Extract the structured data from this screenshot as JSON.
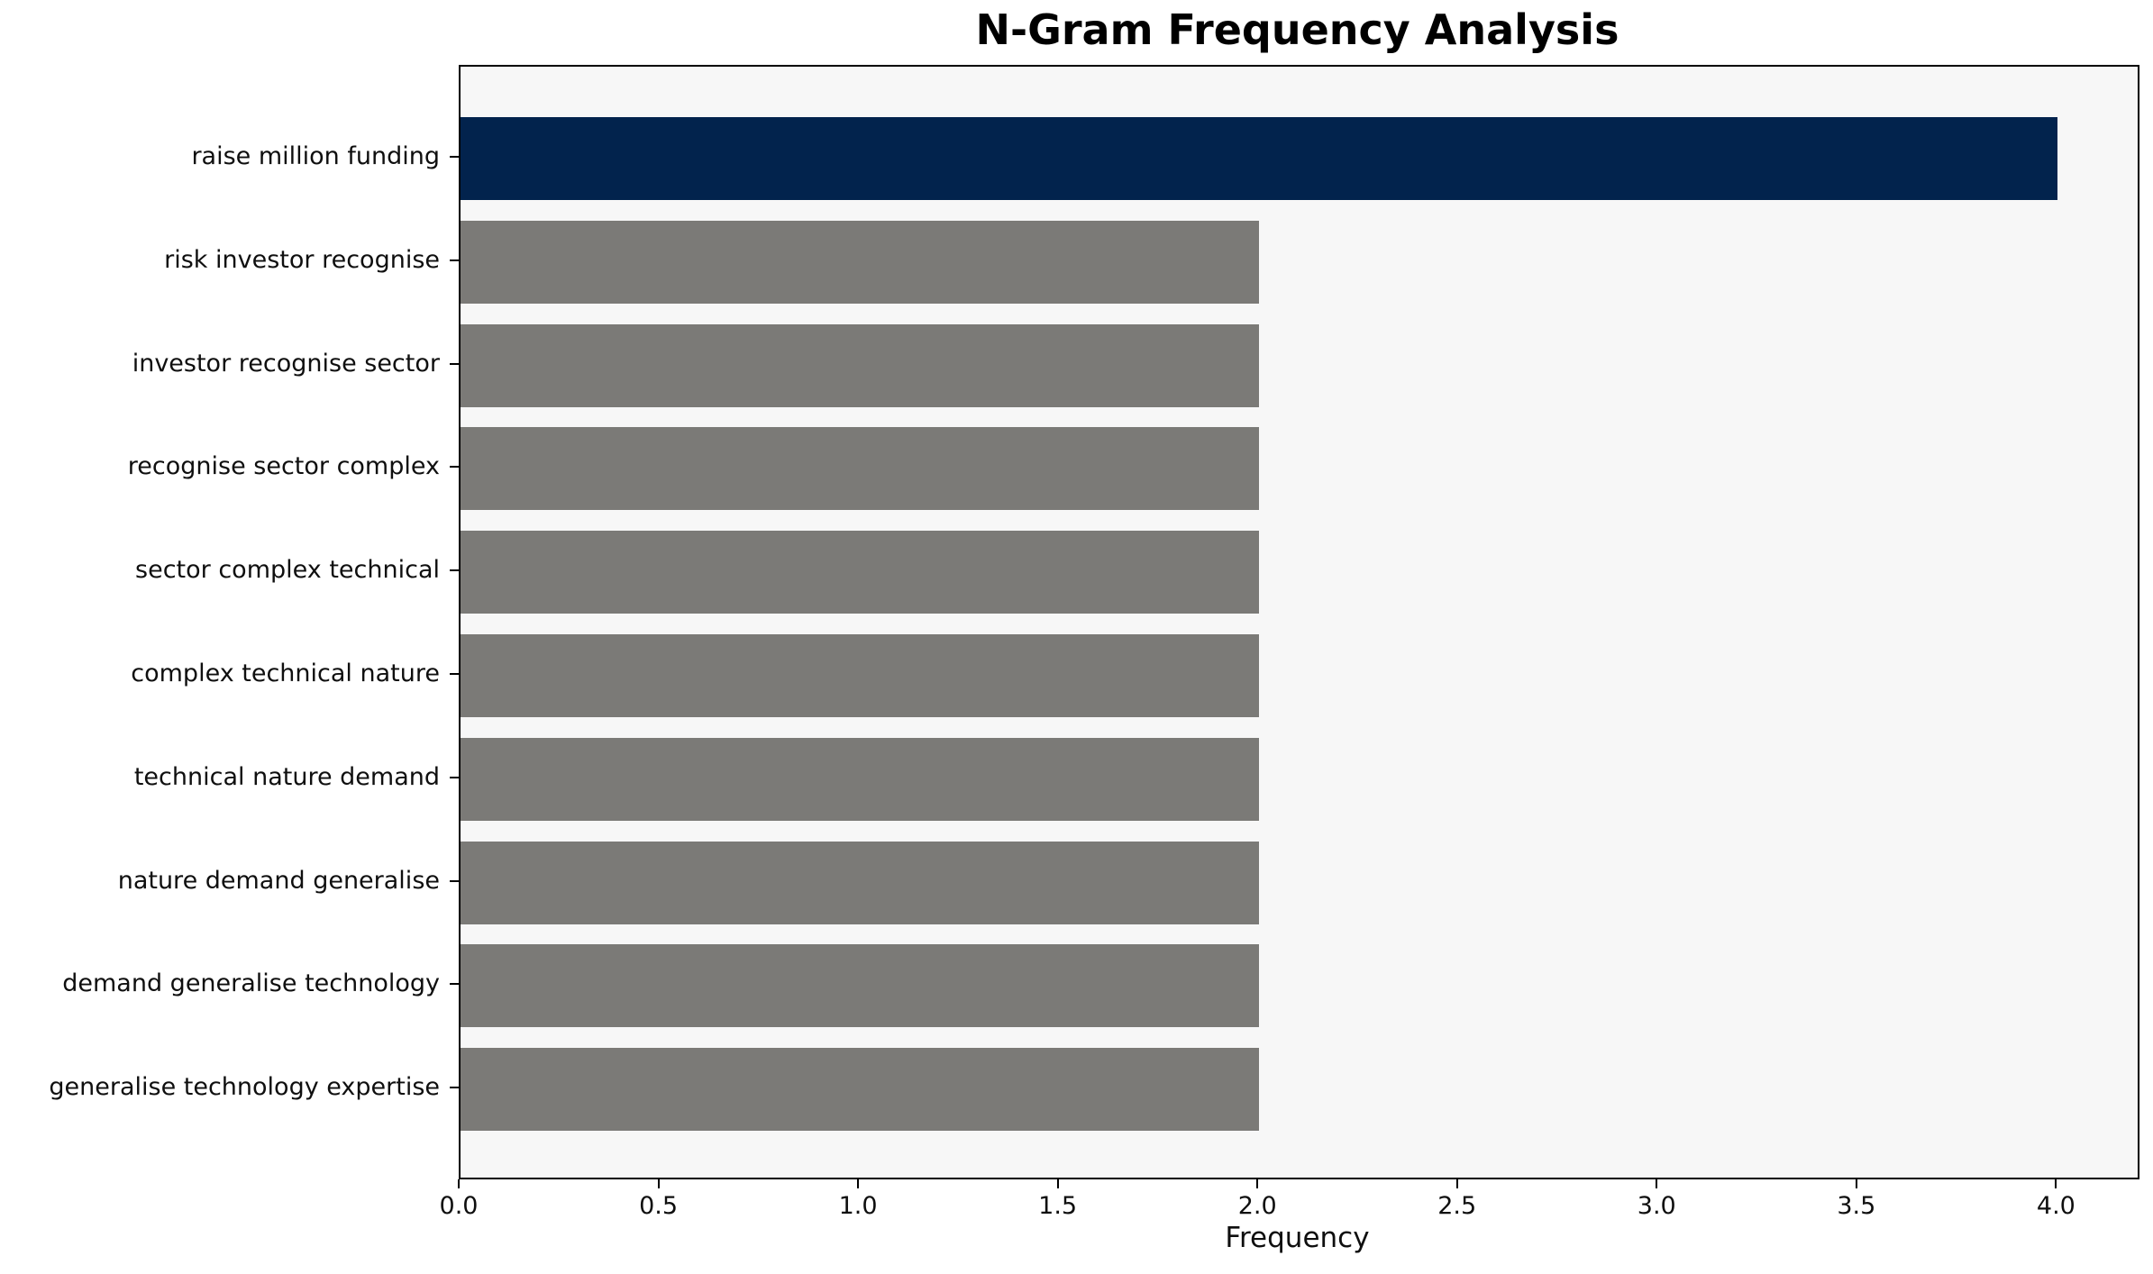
{
  "chart_data": {
    "type": "bar",
    "orientation": "horizontal",
    "title": "N-Gram Frequency Analysis",
    "xlabel": "Frequency",
    "ylabel": "",
    "categories": [
      "raise million funding",
      "risk investor recognise",
      "investor recognise sector",
      "recognise sector complex",
      "sector complex technical",
      "complex technical nature",
      "technical nature demand",
      "nature demand generalise",
      "demand generalise technology",
      "generalise technology expertise"
    ],
    "values": [
      4,
      2,
      2,
      2,
      2,
      2,
      2,
      2,
      2,
      2
    ],
    "xlim": [
      0,
      4.2
    ],
    "xticks": [
      "0.0",
      "0.5",
      "1.0",
      "1.5",
      "2.0",
      "2.5",
      "3.0",
      "3.5",
      "4.0"
    ],
    "grid": false,
    "legend": null,
    "colors": {
      "highlight_bar": "#02234d",
      "default_bar": "#7b7a77",
      "plot_background": "#f7f7f7",
      "figure_background": "#ffffff",
      "spine": "#000000",
      "text": "#0f0f0f"
    },
    "bar_colors": [
      "#02234d",
      "#7b7a77",
      "#7b7a77",
      "#7b7a77",
      "#7b7a77",
      "#7b7a77",
      "#7b7a77",
      "#7b7a77",
      "#7b7a77",
      "#7b7a77"
    ]
  }
}
